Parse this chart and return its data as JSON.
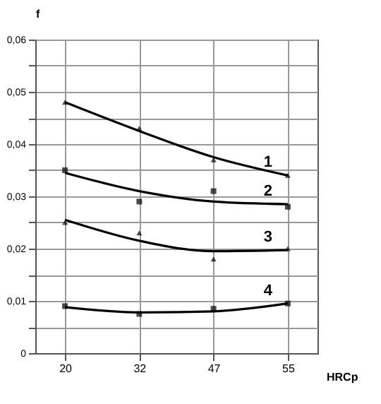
{
  "chart_data": {
    "type": "line",
    "xlabel": "HRCp",
    "ylabel": "f",
    "categories": [
      "20",
      "32",
      "47",
      "55"
    ],
    "ylim": [
      0,
      0.06
    ],
    "yticks": [
      {
        "value": 0,
        "label": "0"
      },
      {
        "value": 0.005,
        "label": null
      },
      {
        "value": 0.01,
        "label": "0,01"
      },
      {
        "value": 0.015,
        "label": null
      },
      {
        "value": 0.02,
        "label": "0,02"
      },
      {
        "value": 0.025,
        "label": null
      },
      {
        "value": 0.03,
        "label": "0,03"
      },
      {
        "value": 0.035,
        "label": null
      },
      {
        "value": 0.04,
        "label": "0,04"
      },
      {
        "value": 0.045,
        "label": null
      },
      {
        "value": 0.05,
        "label": "0,05"
      },
      {
        "value": 0.055,
        "label": null
      },
      {
        "value": 0.06,
        "label": "0,06"
      }
    ],
    "grid": true,
    "legend": false,
    "line_style": "solid",
    "series": [
      {
        "name": "1",
        "type": "line",
        "marker": "none",
        "color": "#000000",
        "values": [
          0.048,
          0.0425,
          0.0375,
          0.034
        ]
      },
      {
        "type": "scatter",
        "marker": "triangle",
        "color": "#000000",
        "values": [
          0.048,
          0.043,
          0.037,
          0.034
        ]
      },
      {
        "name": "2",
        "type": "line",
        "marker": "none",
        "color": "#000000",
        "values": [
          0.0345,
          0.031,
          0.029,
          0.0285
        ]
      },
      {
        "type": "scatter",
        "marker": "square",
        "color": "#000000",
        "values": [
          0.035,
          0.029,
          0.031,
          0.028
        ]
      },
      {
        "name": "3",
        "type": "line",
        "marker": "none",
        "color": "#000000",
        "values": [
          0.0255,
          0.0215,
          0.0195,
          0.0197
        ]
      },
      {
        "type": "scatter",
        "marker": "triangle",
        "color": "#000000",
        "values": [
          0.025,
          0.023,
          0.018,
          0.02
        ]
      },
      {
        "name": "4",
        "type": "line",
        "marker": "none",
        "color": "#000000",
        "values": [
          0.0088,
          0.0078,
          0.008,
          0.0095
        ]
      },
      {
        "type": "scatter",
        "marker": "square",
        "color": "#000000",
        "values": [
          0.009,
          0.0075,
          0.0085,
          0.0095
        ]
      }
    ]
  }
}
